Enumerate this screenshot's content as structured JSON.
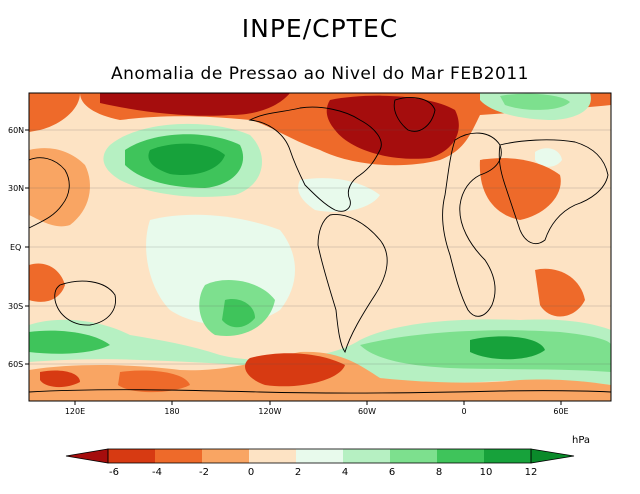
{
  "header": {
    "organization": "INPE/CPTEC",
    "subtitle": "Anomalia de Pressao ao Nivel do Mar FEB2011"
  },
  "map": {
    "lat_labels": [
      "60N",
      "30N",
      "EQ",
      "30S",
      "60S"
    ],
    "lon_labels": [
      "120E",
      "180",
      "120W",
      "60W",
      "0",
      "60E"
    ]
  },
  "colorbar": {
    "unit": "hPa",
    "ticks": [
      "-6",
      "-4",
      "-2",
      "0",
      "2",
      "4",
      "6",
      "8",
      "10",
      "12"
    ],
    "colors": {
      "neg8": "#a50d0d",
      "neg6": "#d73a12",
      "neg4": "#ee6a2a",
      "neg2": "#f9a563",
      "neg0": "#fde3c4",
      "pos0": "#e8faec",
      "pos2": "#b6f0c2",
      "pos4": "#7de08e",
      "pos6": "#3fc45b",
      "pos8": "#17a23b",
      "pos10": "#0a8a2a",
      "pos12": "#066b1e"
    }
  }
}
